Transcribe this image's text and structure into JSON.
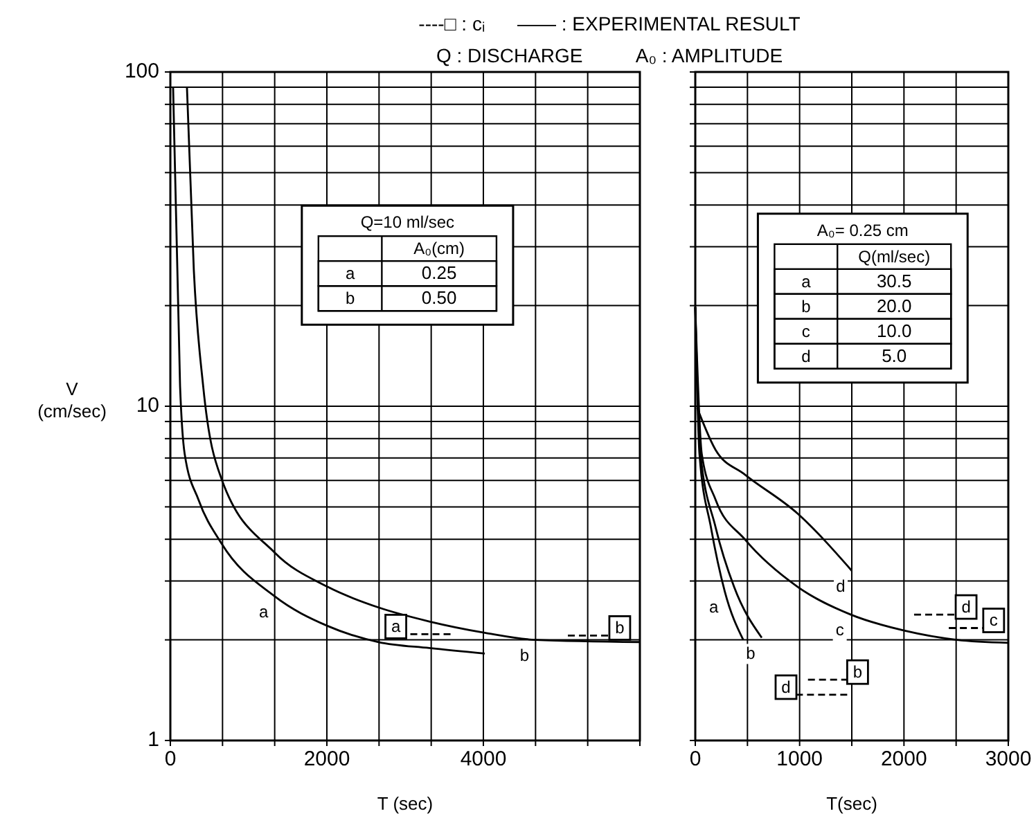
{
  "chart_data": [
    {
      "type": "line",
      "title": "----□ : cᵢ      —— : EXPERIMENTAL RESULT",
      "subtitle": "Q : DISCHARGE          A₀ : AMPLITUDE",
      "xlabel": "T (sec)",
      "ylabel": "V (cm/sec)",
      "log": "y",
      "grid": true,
      "marker": "none",
      "xlim": [
        0,
        6000
      ],
      "ylim": [
        1,
        100
      ],
      "xticks": [
        0,
        {
          "value": 666.7,
          "label": null
        },
        {
          "value": 1333.3,
          "label": null
        },
        2000,
        {
          "value": 2666.7,
          "label": null
        },
        {
          "value": 3333.3,
          "label": null
        },
        4000,
        {
          "value": 4666.7,
          "label": null
        },
        {
          "value": 5333.3,
          "label": null
        },
        {
          "value": 6000,
          "label": null
        }
      ],
      "yticks": [
        1,
        {
          "value": 2,
          "label": null
        },
        {
          "value": 3,
          "label": null
        },
        {
          "value": 4,
          "label": null
        },
        {
          "value": 5,
          "label": null
        },
        {
          "value": 6,
          "label": null
        },
        {
          "value": 7,
          "label": null
        },
        {
          "value": 8,
          "label": null
        },
        {
          "value": 9,
          "label": null
        },
        10,
        {
          "value": 20,
          "label": null
        },
        {
          "value": 30,
          "label": null
        },
        {
          "value": 40,
          "label": null
        },
        {
          "value": 50,
          "label": null
        },
        {
          "value": 60,
          "label": null
        },
        {
          "value": 70,
          "label": null
        },
        {
          "value": 80,
          "label": null
        },
        {
          "value": 90,
          "label": null
        },
        100
      ],
      "series": [
        {
          "color": "#000000",
          "line_style": "solid",
          "x": [
            35,
            124,
            183,
            360,
            655,
            1333,
            2012,
            2660,
            3310,
            4018
          ],
          "values": [
            90,
            11.5,
            7.2,
            5.25,
            3.88,
            2.7,
            2.2,
            1.97,
            1.89,
            1.82
          ]
        },
        {
          "color": "#000000",
          "line_style": "solid",
          "x": [
            212,
            300,
            419,
            655,
            1333,
            2012,
            2660,
            3310,
            4018,
            4667,
            6000
          ],
          "values": [
            90,
            25.5,
            11.5,
            6.05,
            3.65,
            2.88,
            2.5,
            2.27,
            2.1,
            2.0,
            1.97
          ]
        },
        {
          "name": "a",
          "color": "#000000",
          "line_style": "dashed",
          "x": [
            3580,
            3014
          ],
          "values": [
            2.08,
            2.08
          ]
        },
        {
          "name": "b",
          "color": "#000000",
          "line_style": "dashed",
          "x": [
            5080,
            5610
          ],
          "values": [
            2.06,
            2.06
          ]
        }
      ],
      "annotations": [
        {
          "text": "a",
          "x": 1333,
          "y": 2.7
        },
        {
          "text": "b",
          "x": 4667,
          "y": 2.0
        },
        "Q=10 ml/sec",
        "A₀(cm)",
        "a",
        "0.25",
        "b",
        "0.50"
      ]
    },
    {
      "type": "line",
      "xlabel": "T(sec)",
      "log": "y",
      "grid": true,
      "marker": "none",
      "tick_labels": "x",
      "xlim": [
        0,
        3000
      ],
      "ylim": [
        1,
        100
      ],
      "xticks": [
        0,
        {
          "value": 500,
          "label": null
        },
        1000,
        {
          "value": 1500,
          "label": null
        },
        2000,
        {
          "value": 2500,
          "label": null
        },
        3000
      ],
      "yticks": [
        1,
        {
          "value": 2,
          "label": null
        },
        {
          "value": 3,
          "label": null
        },
        {
          "value": 4,
          "label": null
        },
        {
          "value": 5,
          "label": null
        },
        {
          "value": 6,
          "label": null
        },
        {
          "value": 7,
          "label": null
        },
        {
          "value": 8,
          "label": null
        },
        {
          "value": 9,
          "label": null
        },
        10,
        {
          "value": 20,
          "label": null
        },
        {
          "value": 30,
          "label": null
        },
        {
          "value": 40,
          "label": null
        },
        {
          "value": 50,
          "label": null
        },
        {
          "value": 60,
          "label": null
        },
        {
          "value": 70,
          "label": null
        },
        {
          "value": 80,
          "label": null
        },
        {
          "value": 90,
          "label": null
        },
        100
      ],
      "series": [
        {
          "color": "#000000",
          "line_style": "solid",
          "x": [
            0,
            40,
            150,
            283,
            460
          ],
          "values": [
            19.8,
            7.2,
            4.34,
            2.79,
            2.0
          ]
        },
        {
          "color": "#000000",
          "line_style": "solid",
          "x": [
            0,
            45,
            195,
            372,
            637
          ],
          "values": [
            19.8,
            7.4,
            4.34,
            2.88,
            2.03
          ]
        },
        {
          "color": "#000000",
          "line_style": "solid",
          "x": [
            0,
            62,
            195,
            474,
            982,
            1491,
            2009,
            2509,
            2996
          ],
          "values": [
            19.8,
            7.2,
            5.25,
            4.0,
            2.88,
            2.38,
            2.13,
            2.0,
            1.96
          ]
        },
        {
          "color": "#000000",
          "line_style": "solid",
          "x": [
            18,
            195,
            474,
            982,
            1500
          ],
          "values": [
            9.9,
            7.4,
            6.25,
            4.77,
            3.22
          ]
        },
        {
          "name": "d",
          "color": "#000000",
          "line_style": "dashed",
          "x": [
            2097,
            2496
          ],
          "values": [
            2.38,
            2.38
          ]
        },
        {
          "name": "c",
          "color": "#000000",
          "line_style": "dashed",
          "x": [
            2430,
            2760
          ],
          "values": [
            2.17,
            2.17
          ]
        },
        {
          "name": "b",
          "color": "#000000",
          "line_style": "dashed",
          "x": [
            1080,
            1456
          ],
          "values": [
            1.52,
            1.52
          ]
        },
        {
          "name": "d",
          "color": "#000000",
          "line_style": "dashed",
          "x": [
            1456,
            969
          ],
          "values": [
            1.37,
            1.37
          ]
        }
      ],
      "annotations": [
        {
          "text": "a",
          "x": 283,
          "y": 2.79
        },
        {
          "text": "b",
          "x": 637,
          "y": 2.03
        },
        {
          "text": "c",
          "x": 1491,
          "y": 2.38
        },
        {
          "text": "d",
          "x": 1500,
          "y": 3.22
        },
        "A₀= 0.25 cm",
        "Q(ml/sec)",
        "a",
        "30.5",
        "b",
        "20.0",
        "c",
        "10.0",
        "d",
        "5.0"
      ]
    }
  ]
}
